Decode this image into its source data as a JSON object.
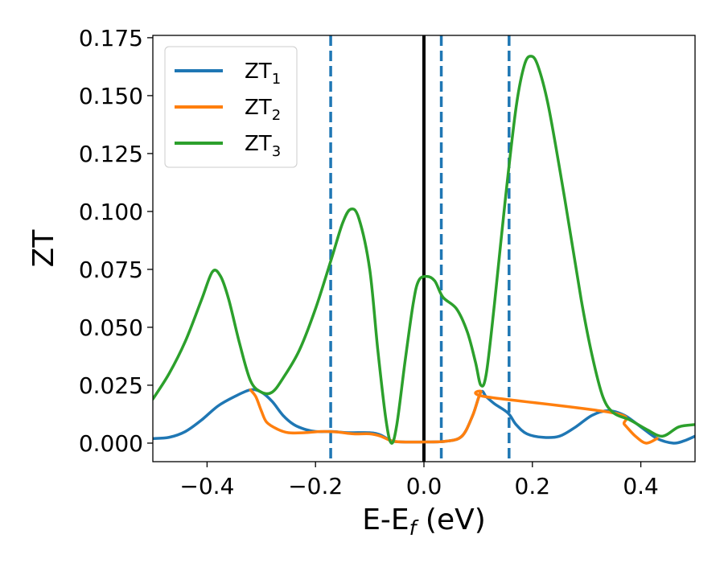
{
  "chart_data": {
    "type": "line",
    "title": "",
    "xlabel": "E-E",
    "xlabel_sub": "f",
    "xlabel_unit": " (eV)",
    "ylabel": "ZT",
    "xlim": [
      -0.5,
      0.5
    ],
    "ylim": [
      -0.008,
      0.176
    ],
    "xticks": [
      -0.4,
      -0.2,
      0.0,
      0.2,
      0.4
    ],
    "xtick_labels": [
      "−0.4",
      "−0.2",
      "0.0",
      "0.2",
      "0.4"
    ],
    "yticks": [
      0.0,
      0.025,
      0.05,
      0.075,
      0.1,
      0.125,
      0.15,
      0.175
    ],
    "ytick_labels": [
      "0.000",
      "0.025",
      "0.050",
      "0.075",
      "0.100",
      "0.125",
      "0.150",
      "0.175"
    ],
    "grid": false,
    "legend_position": "top-left",
    "series": [
      {
        "name": "ZT",
        "sub": "1",
        "color": "#1f77b4",
        "points": [
          [
            -0.5,
            0.002
          ],
          [
            -0.47,
            0.0025
          ],
          [
            -0.44,
            0.005
          ],
          [
            -0.41,
            0.01
          ],
          [
            -0.38,
            0.016
          ],
          [
            -0.35,
            0.02
          ],
          [
            -0.32,
            0.023
          ],
          [
            -0.3,
            0.022
          ],
          [
            -0.28,
            0.018
          ],
          [
            -0.26,
            0.012
          ],
          [
            -0.24,
            0.008
          ],
          [
            -0.22,
            0.006
          ],
          [
            -0.2,
            0.005
          ],
          [
            -0.17,
            0.005
          ],
          [
            -0.14,
            0.0045
          ],
          [
            -0.1,
            0.0045
          ],
          [
            -0.08,
            0.0035
          ],
          [
            -0.06,
            0.001
          ],
          [
            -0.04,
            0.0005
          ],
          [
            0.0,
            0.0005
          ],
          [
            0.04,
            0.0008
          ],
          [
            0.07,
            0.003
          ],
          [
            0.09,
            0.012
          ],
          [
            0.105,
            0.022
          ],
          [
            0.115,
            0.02
          ],
          [
            0.13,
            0.017
          ],
          [
            0.155,
            0.013
          ],
          [
            0.17,
            0.008
          ],
          [
            0.19,
            0.004
          ],
          [
            0.22,
            0.0025
          ],
          [
            0.25,
            0.003
          ],
          [
            0.28,
            0.007
          ],
          [
            0.31,
            0.012
          ],
          [
            0.34,
            0.014
          ],
          [
            0.37,
            0.012
          ],
          [
            0.4,
            0.007
          ],
          [
            0.43,
            0.002
          ],
          [
            0.46,
            0.0
          ],
          [
            0.48,
            0.001
          ],
          [
            0.5,
            0.003
          ]
        ]
      },
      {
        "name": "ZT",
        "sub": "2",
        "color": "#ff7f0e",
        "points": [
          [
            -0.32,
            0.023
          ],
          [
            -0.31,
            0.02
          ],
          [
            -0.3,
            0.014
          ],
          [
            -0.29,
            0.009
          ],
          [
            -0.27,
            0.006
          ],
          [
            -0.25,
            0.0045
          ],
          [
            -0.22,
            0.0045
          ],
          [
            -0.19,
            0.005
          ],
          [
            -0.16,
            0.0048
          ],
          [
            -0.13,
            0.004
          ],
          [
            -0.1,
            0.004
          ],
          [
            -0.08,
            0.003
          ],
          [
            -0.06,
            0.001
          ],
          [
            -0.04,
            0.0005
          ],
          [
            0.0,
            0.0005
          ],
          [
            0.04,
            0.0008
          ],
          [
            0.07,
            0.003
          ],
          [
            0.09,
            0.012
          ],
          [
            0.105,
            0.022
          ],
          [
            0.115,
            0.02
          ],
          [
            0.35,
            0.013
          ],
          [
            0.37,
            0.008
          ],
          [
            0.39,
            0.003
          ],
          [
            0.41,
            0.0
          ],
          [
            0.43,
            0.002
          ]
        ]
      },
      {
        "name": "ZT",
        "sub": "3",
        "color": "#2ca02c",
        "points": [
          [
            -0.5,
            0.019
          ],
          [
            -0.47,
            0.03
          ],
          [
            -0.44,
            0.044
          ],
          [
            -0.41,
            0.062
          ],
          [
            -0.39,
            0.074
          ],
          [
            -0.375,
            0.072
          ],
          [
            -0.36,
            0.062
          ],
          [
            -0.34,
            0.043
          ],
          [
            -0.32,
            0.027
          ],
          [
            -0.3,
            0.022
          ],
          [
            -0.28,
            0.022
          ],
          [
            -0.26,
            0.028
          ],
          [
            -0.23,
            0.04
          ],
          [
            -0.2,
            0.058
          ],
          [
            -0.17,
            0.08
          ],
          [
            -0.15,
            0.095
          ],
          [
            -0.135,
            0.101
          ],
          [
            -0.12,
            0.097
          ],
          [
            -0.1,
            0.075
          ],
          [
            -0.085,
            0.04
          ],
          [
            -0.07,
            0.01
          ],
          [
            -0.06,
            0.0
          ],
          [
            -0.05,
            0.008
          ],
          [
            -0.035,
            0.035
          ],
          [
            -0.02,
            0.06
          ],
          [
            -0.01,
            0.07
          ],
          [
            0.005,
            0.072
          ],
          [
            0.02,
            0.07
          ],
          [
            0.035,
            0.063
          ],
          [
            0.06,
            0.058
          ],
          [
            0.08,
            0.048
          ],
          [
            0.095,
            0.035
          ],
          [
            0.105,
            0.025
          ],
          [
            0.115,
            0.03
          ],
          [
            0.13,
            0.06
          ],
          [
            0.15,
            0.105
          ],
          [
            0.17,
            0.145
          ],
          [
            0.185,
            0.163
          ],
          [
            0.197,
            0.167
          ],
          [
            0.21,
            0.163
          ],
          [
            0.23,
            0.145
          ],
          [
            0.26,
            0.105
          ],
          [
            0.29,
            0.062
          ],
          [
            0.31,
            0.038
          ],
          [
            0.33,
            0.02
          ],
          [
            0.35,
            0.013
          ],
          [
            0.38,
            0.01
          ],
          [
            0.41,
            0.006
          ],
          [
            0.44,
            0.003
          ],
          [
            0.47,
            0.007
          ],
          [
            0.5,
            0.008
          ]
        ]
      }
    ],
    "vlines": [
      {
        "x": 0.0,
        "style": "solid",
        "color": "#000000"
      },
      {
        "x": -0.172,
        "style": "dashed",
        "color": "#1f77b4"
      },
      {
        "x": 0.032,
        "style": "dashed",
        "color": "#1f77b4"
      },
      {
        "x": 0.157,
        "style": "dashed",
        "color": "#1f77b4"
      }
    ]
  }
}
